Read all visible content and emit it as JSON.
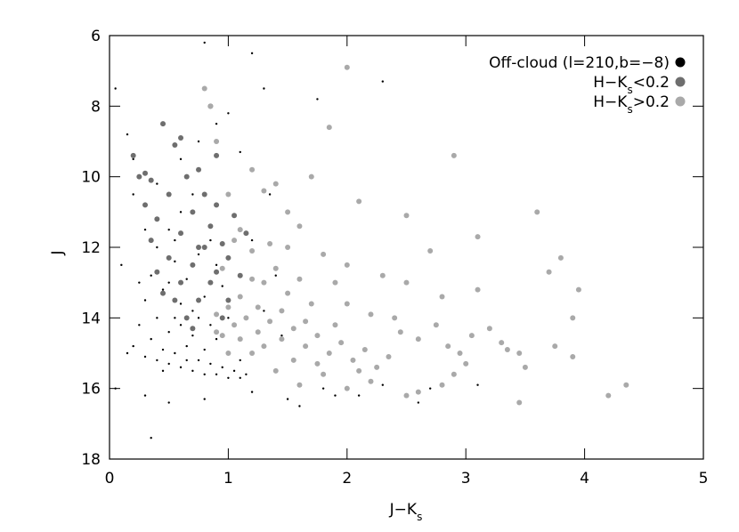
{
  "chart_data": {
    "type": "scatter",
    "xlabel": [
      "J−K",
      "s"
    ],
    "ylabel": "J",
    "xlim": [
      0,
      5
    ],
    "ylim": [
      18,
      6
    ],
    "xticks": [
      0,
      1,
      2,
      3,
      4,
      5
    ],
    "yticks": [
      6,
      8,
      10,
      12,
      14,
      16,
      18
    ],
    "legend": "upper right",
    "series": [
      {
        "name": "Off-cloud (l=210,b=−8)",
        "color": "#000000",
        "x": [
          0.15,
          0.2,
          0.25,
          0.3,
          0.3,
          0.35,
          0.35,
          0.4,
          0.4,
          0.4,
          0.45,
          0.45,
          0.5,
          0.5,
          0.5,
          0.5,
          0.55,
          0.55,
          0.6,
          0.6,
          0.6,
          0.6,
          0.65,
          0.65,
          0.7,
          0.7,
          0.7,
          0.7,
          0.75,
          0.75,
          0.8,
          0.8,
          0.8,
          0.85,
          0.85,
          0.9,
          0.9,
          0.95,
          0.95,
          1.0,
          1.0,
          1.05,
          1.1,
          1.1,
          1.15,
          0.3,
          0.5,
          0.8,
          1.2,
          1.5,
          1.8,
          2.1,
          2.6,
          3.1,
          0.05,
          0.1,
          0.2,
          0.15,
          0.05,
          0.6,
          0.75,
          0.8,
          0.9,
          1.0,
          1.1,
          1.2,
          1.3,
          1.35,
          1.2,
          1.4,
          1.45,
          1.3,
          1.75,
          2.3,
          0.35,
          0.55,
          0.65,
          0.45,
          0.85,
          0.75,
          0.25,
          0.3,
          0.9,
          1.0,
          0.55,
          0.4,
          0.2,
          1.6,
          1.9,
          2.3,
          2.7
        ],
        "values": [
          15.0,
          14.8,
          14.2,
          15.1,
          13.5,
          14.6,
          12.8,
          15.2,
          14.0,
          12.0,
          13.2,
          14.9,
          15.3,
          14.4,
          13.0,
          11.5,
          15.0,
          12.4,
          15.4,
          14.2,
          13.6,
          11.0,
          14.8,
          12.9,
          15.5,
          14.5,
          13.8,
          10.5,
          15.2,
          12.2,
          15.6,
          14.9,
          13.4,
          15.3,
          11.8,
          15.6,
          14.6,
          15.4,
          13.1,
          15.7,
          15.0,
          15.5,
          15.7,
          15.2,
          15.6,
          16.2,
          16.4,
          16.3,
          16.1,
          16.3,
          16.0,
          16.2,
          16.4,
          15.9,
          16.0,
          12.5,
          10.5,
          8.8,
          7.5,
          9.5,
          9.0,
          6.2,
          8.5,
          8.2,
          9.3,
          6.5,
          7.5,
          10.5,
          11.8,
          12.8,
          14.5,
          13.8,
          7.8,
          7.3,
          17.4,
          14.0,
          15.2,
          15.5,
          14.2,
          14.0,
          13.0,
          11.5,
          12.5,
          14.0,
          11.8,
          10.2,
          9.5,
          16.5,
          16.2,
          15.9,
          16.0
        ]
      },
      {
        "name": [
          "H−K",
          "s",
          "<0.2"
        ],
        "color": "#6e6e6e",
        "x": [
          0.2,
          0.25,
          0.3,
          0.35,
          0.4,
          0.45,
          0.5,
          0.5,
          0.55,
          0.6,
          0.6,
          0.65,
          0.7,
          0.7,
          0.75,
          0.75,
          0.8,
          0.8,
          0.85,
          0.85,
          0.9,
          0.9,
          0.95,
          1.0,
          1.0,
          1.05,
          1.1,
          0.65,
          0.55,
          0.4,
          0.3,
          0.85,
          0.7,
          0.95,
          0.6,
          0.35,
          0.75,
          1.15,
          0.9,
          0.45
        ],
        "values": [
          9.4,
          10.0,
          10.8,
          10.1,
          11.2,
          8.5,
          12.3,
          10.5,
          9.1,
          11.6,
          13.0,
          10.0,
          12.5,
          11.0,
          9.8,
          13.5,
          12.0,
          10.5,
          11.4,
          13.0,
          12.7,
          10.8,
          11.9,
          12.3,
          13.5,
          11.1,
          12.8,
          14.0,
          13.5,
          12.7,
          9.9,
          8.0,
          14.3,
          14.0,
          8.9,
          11.8,
          12.0,
          11.6,
          9.4,
          13.3
        ]
      },
      {
        "name": [
          "H−K",
          "s",
          ">0.2"
        ],
        "color": "#a9a9a9",
        "x": [
          0.8,
          0.85,
          0.9,
          1.0,
          1.1,
          1.2,
          1.3,
          1.4,
          1.5,
          1.6,
          1.7,
          1.85,
          2.0,
          2.1,
          2.5,
          2.7,
          2.9,
          3.1,
          3.6,
          3.8,
          3.7,
          3.95,
          3.1,
          2.8,
          2.5,
          2.3,
          2.0,
          1.9,
          1.8,
          1.7,
          1.6,
          1.5,
          1.4,
          1.3,
          1.2,
          1.1,
          1.0,
          0.9,
          0.95,
          1.05,
          1.15,
          1.25,
          1.35,
          1.45,
          1.55,
          1.65,
          1.75,
          1.85,
          1.95,
          2.05,
          2.15,
          2.25,
          2.35,
          2.45,
          2.6,
          2.75,
          2.85,
          2.95,
          3.05,
          3.2,
          3.35,
          3.45,
          3.5,
          3.75,
          3.9,
          3.9,
          4.2,
          4.35,
          3.45,
          3.0,
          2.8,
          2.6,
          2.5,
          2.2,
          2.0,
          1.8,
          1.6,
          1.4,
          1.2,
          1.3,
          1.1,
          1.0,
          0.9,
          1.2,
          1.05,
          1.35,
          1.5,
          1.65,
          1.9,
          2.2,
          2.4,
          2.0,
          1.75,
          2.1,
          2.9,
          3.3,
          0.95,
          1.25,
          1.45,
          1.55
        ],
        "values": [
          7.5,
          8.0,
          9.0,
          10.5,
          11.5,
          9.8,
          10.4,
          10.2,
          11.0,
          11.4,
          10.0,
          8.6,
          6.9,
          10.7,
          11.1,
          12.1,
          9.4,
          11.7,
          11.0,
          12.3,
          12.7,
          13.2,
          13.2,
          13.4,
          13.0,
          12.8,
          12.5,
          13.0,
          12.2,
          13.6,
          12.9,
          13.3,
          12.6,
          13.0,
          12.9,
          13.4,
          13.7,
          13.9,
          14.5,
          14.2,
          14.0,
          14.4,
          14.1,
          14.6,
          14.3,
          14.8,
          14.5,
          15.0,
          14.7,
          15.2,
          14.9,
          15.4,
          15.1,
          14.4,
          14.6,
          14.2,
          14.8,
          15.0,
          14.5,
          14.3,
          14.9,
          15.0,
          15.4,
          14.8,
          15.1,
          14.0,
          16.2,
          15.9,
          16.4,
          15.3,
          15.9,
          16.1,
          16.2,
          15.8,
          16.0,
          15.6,
          15.9,
          15.5,
          15.0,
          14.8,
          14.6,
          15.0,
          14.4,
          12.1,
          11.8,
          11.9,
          12.0,
          14.1,
          14.2,
          13.9,
          14.0,
          13.6,
          15.3,
          15.5,
          15.6,
          14.7,
          12.6,
          13.7,
          13.8,
          15.2
        ]
      }
    ]
  }
}
